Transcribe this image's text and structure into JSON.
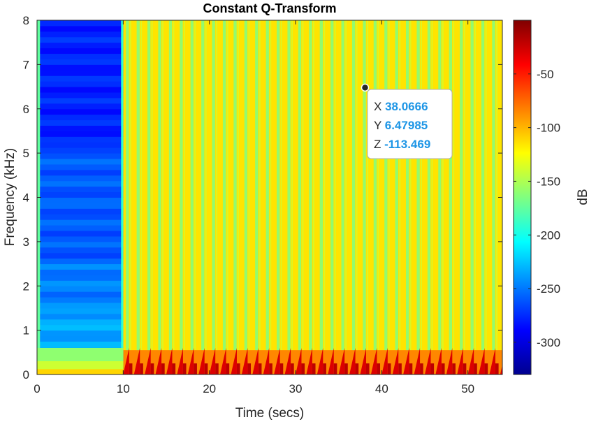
{
  "chart_data": {
    "type": "heatmap",
    "title": "Constant Q-Transform",
    "xlabel": "Time (secs)",
    "ylabel": "Frequency (kHz)",
    "xlim": [
      0,
      54
    ],
    "ylim": [
      0,
      8
    ],
    "x_ticks": [
      0,
      10,
      20,
      30,
      40,
      50
    ],
    "y_ticks": [
      0,
      1,
      2,
      3,
      4,
      5,
      6,
      7,
      8
    ],
    "colorbar": {
      "label": "dB",
      "range": [
        -330,
        0
      ],
      "ticks": [
        -50,
        -100,
        -150,
        -200,
        -250,
        -300
      ],
      "colormap": "jet"
    },
    "regions": [
      {
        "x_start": 0,
        "x_end": 10,
        "description_level_db": -260,
        "low_freq_level_db": -140
      },
      {
        "x_start": 10,
        "x_end": 54,
        "background_level_db": -115,
        "stripe_level_db": -165,
        "low_freq_level_db": -30
      }
    ],
    "stripe_period_secs": 1.25,
    "datatip": {
      "x_key": "X",
      "x_value": "38.0666",
      "y_key": "Y",
      "y_value": "6.47985",
      "z_key": "Z",
      "z_value": "-113.469",
      "x": 38.0666,
      "y": 6.47985
    }
  }
}
